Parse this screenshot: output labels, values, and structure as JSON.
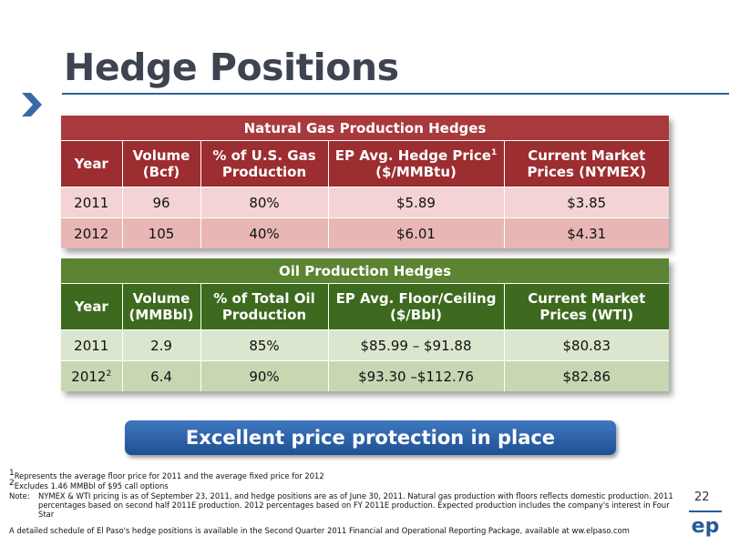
{
  "slide": {
    "title": "Hedge Positions",
    "page_number": "22"
  },
  "gas_table": {
    "header": "Natural Gas Production Hedges",
    "columns": {
      "year": "Year",
      "volume_1": "Volume",
      "volume_2": "(Bcf)",
      "pct_1": "% of U.S. Gas",
      "pct_2": "Production",
      "price_1": "EP Avg. Hedge Price",
      "price_sup": "1",
      "price_2": "($/MMBtu)",
      "market_1": "Current Market",
      "market_2": "Prices (NYMEX)"
    },
    "rows": [
      {
        "year": "2011",
        "volume": "96",
        "pct": "80%",
        "price": "$5.89",
        "market": "$3.85"
      },
      {
        "year": "2012",
        "volume": "105",
        "pct": "40%",
        "price": "$6.01",
        "market": "$4.31"
      }
    ]
  },
  "oil_table": {
    "header": "Oil Production Hedges",
    "columns": {
      "year": "Year",
      "volume_1": "Volume",
      "volume_2": "(MMBbl)",
      "pct_1": "% of Total Oil",
      "pct_2": "Production",
      "price_1": "EP Avg. Floor/Ceiling",
      "price_2": "($/Bbl)",
      "market_1": "Current Market",
      "market_2": "Prices (WTI)"
    },
    "rows": [
      {
        "year": "2011",
        "year_sup": "",
        "volume": "2.9",
        "pct": "85%",
        "price": "$85.99 – $91.88",
        "market": "$80.83"
      },
      {
        "year": "2012",
        "year_sup": "2",
        "volume": "6.4",
        "pct": "90%",
        "price": "$93.30 –$112.76",
        "market": "$82.86"
      }
    ]
  },
  "banner": {
    "text": "Excellent price protection in place"
  },
  "footnotes": {
    "f1_sup": "1",
    "f1": "Represents the average floor price for 2011 and the average fixed price for 2012",
    "f2_sup": "2",
    "f2": "Excludes 1.46 MMBbl of $95 call options",
    "note_label": "Note:",
    "note": "NYMEX & WTI pricing is as of September 23, 2011, and hedge positions are as of June 30, 2011. Natural gas production with floors reflects domestic production. 2011 percentages based on second half 2011E production.  2012 percentages based on FY 2011E production. Expected production includes the company's interest in Four Star",
    "schedule": "A detailed schedule of El Paso's hedge positions is available in the Second Quarter 2011 Financial and Operational Reporting Package, available at ww.elpaso.com"
  },
  "logo": {
    "text": "ep",
    "icon": "el-paso-logo-icon",
    "color": "#2a5a9a"
  },
  "colors": {
    "gas_header": "#a83a3d",
    "oil_header": "#5b8433",
    "banner": "#2f65ad",
    "title": "#3d4450"
  }
}
